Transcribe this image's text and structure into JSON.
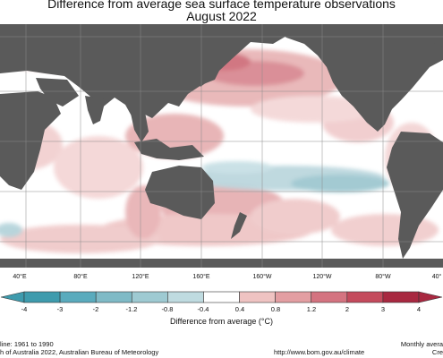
{
  "title_line1": "Difference from average sea surface temperature observations",
  "title_line2": "August 2022",
  "longitude_labels": [
    "40°E",
    "80°E",
    "120°E",
    "160°E",
    "160°W",
    "120°W",
    "80°W",
    "40°"
  ],
  "colorbar": {
    "title": "Difference from average (°C)",
    "tick_labels": [
      "-4",
      "-3",
      "-2",
      "-1.2",
      "-0.8",
      "-0.4",
      "0.4",
      "0.8",
      "1.2",
      "2",
      "3",
      "4"
    ],
    "colors": [
      "#3e9bad",
      "#5aabbd",
      "#7fbac6",
      "#9ecad2",
      "#bfdbe0",
      "#ffffff",
      "#f9e4e3",
      "#efc3c2",
      "#e39ea2",
      "#d47380",
      "#c44a5c",
      "#a82840"
    ]
  },
  "footer": {
    "left_line1": "line: 1961 to 1990",
    "left_line2": "h of Australia 2022, Australian Bureau of Meteorology",
    "right_line1": "Monthly avera",
    "right_line2": "Cre",
    "url": "http://www.bom.gov.au/climate"
  },
  "map_colors": {
    "land": "#5a5a5a",
    "ocean": "#ffffff",
    "grid": "#8a8a8a"
  }
}
